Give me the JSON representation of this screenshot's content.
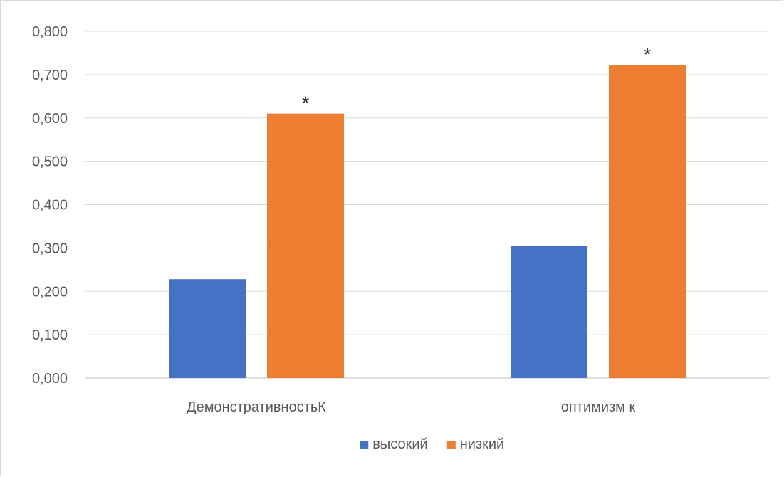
{
  "chart_data": {
    "type": "bar",
    "categories": [
      "ДемонстративностьК",
      "оптимизм к"
    ],
    "series": [
      {
        "name": "высокий",
        "values": [
          0.228,
          0.305
        ],
        "color": "#4472C4"
      },
      {
        "name": "низкий",
        "values": [
          0.61,
          0.722
        ],
        "color": "#ED7D31"
      }
    ],
    "annotations": [
      {
        "category_index": 0,
        "series_index": 1,
        "text": "*"
      },
      {
        "category_index": 1,
        "series_index": 1,
        "text": "*"
      }
    ],
    "y_ticks": [
      "0,000",
      "0,100",
      "0,200",
      "0,300",
      "0,400",
      "0,500",
      "0,600",
      "0,700",
      "0,800"
    ],
    "ylim": [
      0,
      0.8
    ],
    "grid": true,
    "legend_position": "bottom",
    "title": "",
    "xlabel": "",
    "ylabel": ""
  }
}
